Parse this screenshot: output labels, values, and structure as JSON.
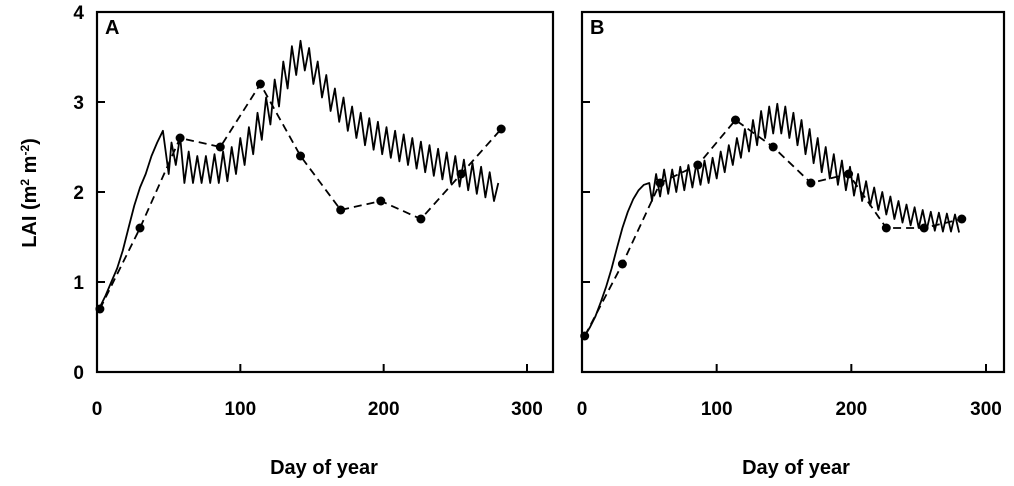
{
  "chart_data": [
    {
      "type": "line",
      "panel_label": "A",
      "xlabel": "Day of year",
      "ylabel": "LAI (m² m⁻²)",
      "ylabel_parts": {
        "main": "LAI (m",
        "sup1": "2",
        "mid": " m",
        "sup2": "-2",
        "end": ")"
      },
      "xlim": [
        0,
        300
      ],
      "ylim": [
        0,
        4
      ],
      "xticks": [
        0,
        100,
        200,
        300
      ],
      "yticks": [
        0,
        1,
        2,
        3,
        4
      ],
      "grid": false,
      "series": [
        {
          "style": "dashed-with-markers",
          "x": [
            2,
            30,
            58,
            86,
            114,
            142,
            170,
            198,
            226,
            254,
            282
          ],
          "y": [
            0.7,
            1.6,
            2.6,
            2.5,
            3.2,
            2.4,
            1.8,
            1.9,
            1.7,
            2.2,
            2.7
          ]
        },
        {
          "style": "solid",
          "x": [
            2,
            6,
            10,
            14,
            18,
            22,
            26,
            30,
            34,
            38,
            42,
            46,
            50,
            52,
            55,
            58,
            61,
            64,
            67,
            70,
            73,
            76,
            79,
            82,
            85,
            88,
            91,
            94,
            97,
            100,
            103,
            106,
            109,
            112,
            115,
            118,
            121,
            124,
            127,
            130,
            133,
            136,
            139,
            142,
            145,
            148,
            151,
            154,
            157,
            160,
            163,
            166,
            169,
            172,
            175,
            178,
            181,
            184,
            187,
            190,
            193,
            196,
            199,
            202,
            205,
            208,
            211,
            214,
            217,
            220,
            223,
            226,
            229,
            232,
            235,
            238,
            241,
            244,
            247,
            250,
            253,
            256,
            259,
            262,
            265,
            268,
            271,
            274,
            277,
            280
          ],
          "y": [
            0.72,
            0.85,
            1.0,
            1.15,
            1.35,
            1.6,
            1.85,
            2.05,
            2.2,
            2.4,
            2.55,
            2.68,
            2.2,
            2.55,
            2.3,
            2.62,
            2.1,
            2.45,
            2.1,
            2.4,
            2.1,
            2.4,
            2.1,
            2.42,
            2.1,
            2.45,
            2.12,
            2.5,
            2.2,
            2.6,
            2.3,
            2.72,
            2.42,
            2.88,
            2.58,
            3.05,
            2.75,
            3.25,
            2.95,
            3.45,
            3.15,
            3.62,
            3.3,
            3.68,
            3.35,
            3.6,
            3.2,
            3.45,
            3.05,
            3.3,
            2.9,
            3.15,
            2.78,
            3.05,
            2.68,
            2.95,
            2.6,
            2.88,
            2.52,
            2.82,
            2.47,
            2.78,
            2.42,
            2.72,
            2.38,
            2.68,
            2.34,
            2.64,
            2.3,
            2.6,
            2.26,
            2.56,
            2.22,
            2.52,
            2.18,
            2.48,
            2.14,
            2.44,
            2.1,
            2.4,
            2.06,
            2.36,
            2.02,
            2.32,
            1.98,
            2.28,
            1.94,
            2.22,
            1.9,
            2.1
          ]
        }
      ]
    },
    {
      "type": "line",
      "panel_label": "B",
      "xlabel": "Day of year",
      "xlim": [
        0,
        300
      ],
      "ylim": [
        0,
        4
      ],
      "xticks": [
        0,
        100,
        200,
        300
      ],
      "yticks": [
        0,
        1,
        2,
        3,
        4
      ],
      "grid": false,
      "series": [
        {
          "style": "dashed-with-markers",
          "x": [
            2,
            30,
            58,
            86,
            114,
            142,
            170,
            198,
            226,
            254,
            282
          ],
          "y": [
            0.4,
            1.2,
            2.1,
            2.3,
            2.8,
            2.5,
            2.1,
            2.2,
            1.6,
            1.6,
            1.7
          ]
        },
        {
          "style": "solid",
          "x": [
            2,
            6,
            10,
            14,
            18,
            22,
            26,
            30,
            34,
            38,
            42,
            46,
            50,
            52,
            55,
            58,
            61,
            64,
            67,
            70,
            73,
            76,
            79,
            82,
            85,
            88,
            91,
            94,
            97,
            100,
            103,
            106,
            109,
            112,
            115,
            118,
            121,
            124,
            127,
            130,
            133,
            136,
            139,
            142,
            145,
            148,
            151,
            154,
            157,
            160,
            163,
            166,
            169,
            172,
            175,
            178,
            181,
            184,
            187,
            190,
            193,
            196,
            199,
            202,
            205,
            208,
            211,
            214,
            217,
            220,
            223,
            226,
            229,
            232,
            235,
            238,
            241,
            244,
            247,
            250,
            253,
            256,
            259,
            262,
            265,
            268,
            271,
            274,
            277,
            280
          ],
          "y": [
            0.4,
            0.5,
            0.62,
            0.78,
            0.95,
            1.15,
            1.38,
            1.6,
            1.78,
            1.92,
            2.02,
            2.08,
            2.1,
            1.9,
            2.2,
            1.95,
            2.25,
            1.98,
            2.25,
            2.0,
            2.28,
            2.02,
            2.3,
            2.05,
            2.32,
            2.08,
            2.35,
            2.1,
            2.38,
            2.15,
            2.45,
            2.22,
            2.52,
            2.3,
            2.6,
            2.38,
            2.7,
            2.45,
            2.8,
            2.52,
            2.9,
            2.6,
            2.95,
            2.65,
            2.98,
            2.65,
            2.95,
            2.6,
            2.88,
            2.52,
            2.8,
            2.42,
            2.7,
            2.32,
            2.6,
            2.22,
            2.5,
            2.15,
            2.42,
            2.08,
            2.35,
            2.02,
            2.28,
            1.96,
            2.2,
            1.9,
            2.12,
            1.85,
            2.05,
            1.8,
            2.0,
            1.75,
            1.95,
            1.7,
            1.9,
            1.66,
            1.86,
            1.63,
            1.83,
            1.6,
            1.8,
            1.58,
            1.78,
            1.57,
            1.77,
            1.56,
            1.76,
            1.56,
            1.75,
            1.55
          ]
        }
      ]
    }
  ]
}
